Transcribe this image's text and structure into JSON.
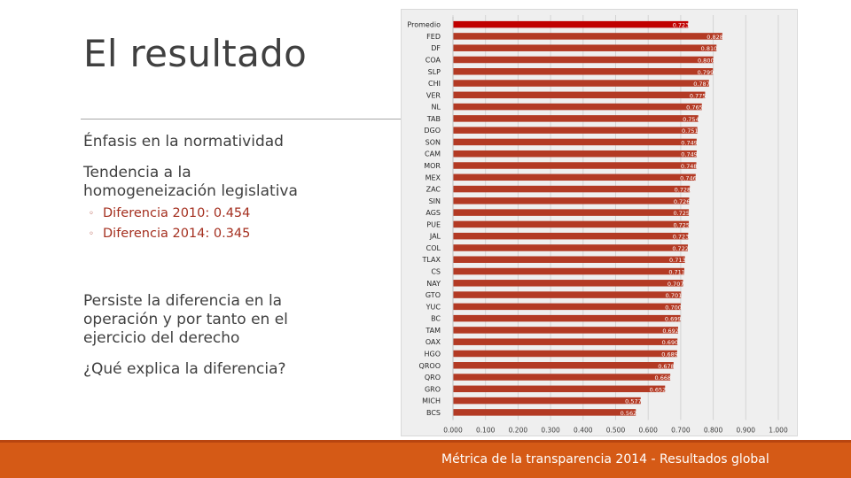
{
  "slide": {
    "title": "El resultado",
    "point1": "Énfasis en la normatividad",
    "point2": "Tendencia a la homogeneización legislativa",
    "bullets": [
      "Diferencia 2010: 0.454",
      "Diferencia 2014: 0.345"
    ],
    "point3": "Persiste la diferencia en la operación y por tanto en el ejercicio del derecho",
    "point4": "¿Qué explica la diferencia?",
    "footer": "Métrica de la transparencia 2014 - Resultados global"
  },
  "colors": {
    "bar": "#b33a24",
    "bar_highlight": "#c00000",
    "footer": "#d55a16",
    "accent_text": "#a42f1f"
  },
  "chart_data": {
    "type": "bar",
    "orientation": "horizontal",
    "title": "",
    "xlabel": "",
    "ylabel": "",
    "xlim": [
      0,
      1
    ],
    "x_ticks": [
      "0.000",
      "0.100",
      "0.200",
      "0.300",
      "0.400",
      "0.500",
      "0.600",
      "0.700",
      "0.800",
      "0.900",
      "1.000"
    ],
    "grid": true,
    "categories": [
      "Promedio",
      "FED",
      "DF",
      "COA",
      "SLP",
      "CHI",
      "VER",
      "NL",
      "TAB",
      "DGO",
      "SON",
      "CAM",
      "MOR",
      "MEX",
      "ZAC",
      "SIN",
      "AGS",
      "PUE",
      "JAL",
      "COL",
      "TLAX",
      "CS",
      "NAY",
      "GTO",
      "YUC",
      "BC",
      "TAM",
      "OAX",
      "HGO",
      "QROO",
      "QRO",
      "GRO",
      "MICH",
      "BCS"
    ],
    "values": [
      0.723,
      0.828,
      0.81,
      0.8,
      0.799,
      0.787,
      0.775,
      0.765,
      0.754,
      0.751,
      0.749,
      0.749,
      0.748,
      0.746,
      0.728,
      0.726,
      0.725,
      0.725,
      0.723,
      0.722,
      0.713,
      0.711,
      0.707,
      0.701,
      0.7,
      0.699,
      0.692,
      0.69,
      0.689,
      0.678,
      0.668,
      0.652,
      0.577,
      0.562
    ],
    "value_labels": [
      "0.723",
      "0.828",
      "0.810",
      "0.800",
      "0.799",
      "0.787",
      "0.775",
      "0.765",
      "0.754",
      "0.751",
      "0.749",
      "0.749",
      "0.748",
      "0.746",
      "0.728",
      "0.726",
      "0.725",
      "0.725",
      "0.723",
      "0.722",
      "0.713",
      "0.711",
      "0.707",
      "0.701",
      "0.700",
      "0.699",
      "0.692",
      "0.690",
      "0.689",
      "0.678",
      "0.668",
      "0.652",
      "0.577",
      "0.562"
    ],
    "highlight": "Promedio"
  }
}
